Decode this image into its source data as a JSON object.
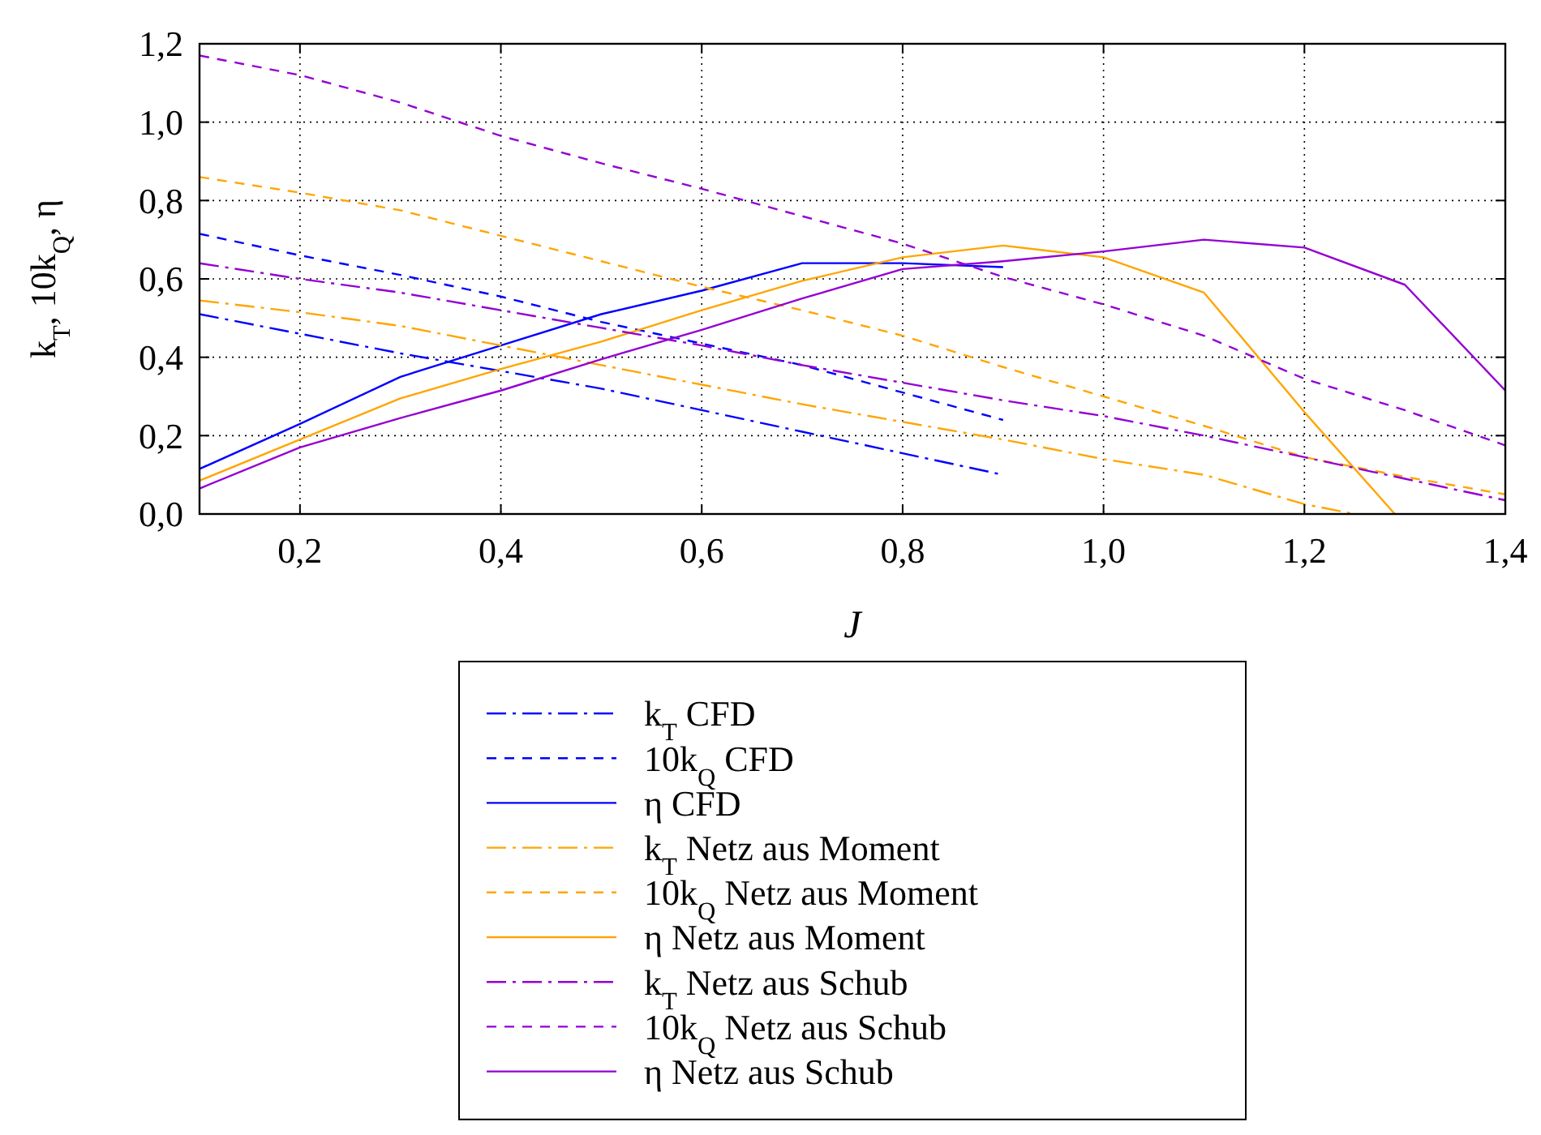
{
  "chart_data": {
    "type": "line",
    "xlabel": "J",
    "ylabel": "k$_{T}$, 10k$_{Q}$, η",
    "xlim": [
      0.1,
      1.4
    ],
    "ylim": [
      0,
      1.2
    ],
    "xticks": [
      {
        "value": 0.2,
        "label": "0,2"
      },
      {
        "value": 0.4,
        "label": "0,4"
      },
      {
        "value": 0.6,
        "label": "0,6"
      },
      {
        "value": 0.8,
        "label": "0,8"
      },
      {
        "value": 1.0,
        "label": "1,0"
      },
      {
        "value": 1.2,
        "label": "1,2"
      },
      {
        "value": 1.4,
        "label": "1,4"
      }
    ],
    "yticks": [
      {
        "value": 0,
        "label": "0,0"
      },
      {
        "value": 0.2,
        "label": "0,2"
      },
      {
        "value": 0.4,
        "label": "0,4"
      },
      {
        "value": 0.6,
        "label": "0,6"
      },
      {
        "value": 0.8,
        "label": "0,8"
      },
      {
        "value": 1.0,
        "label": "1,0"
      },
      {
        "value": 1.2,
        "label": "1,2"
      }
    ],
    "grid": true,
    "legend": "bottom",
    "series": [
      {
        "name": "k$_{T}$ CFD",
        "color": "#0000ff",
        "line_style": "dashdot",
        "x": [
          0.1,
          0.2,
          0.3,
          0.4,
          0.5,
          0.6,
          0.7,
          0.8,
          0.9
        ],
        "values": [
          0.51,
          0.46,
          0.41,
          0.365,
          0.32,
          0.265,
          0.21,
          0.155,
          0.1
        ]
      },
      {
        "name": "10k$_{Q}$ CFD",
        "color": "#0000ff",
        "line_style": "dashed",
        "x": [
          0.1,
          0.2,
          0.3,
          0.4,
          0.5,
          0.6,
          0.7,
          0.8,
          0.9
        ],
        "values": [
          0.715,
          0.66,
          0.61,
          0.555,
          0.49,
          0.435,
          0.38,
          0.31,
          0.24
        ]
      },
      {
        "name": "η CFD",
        "color": "#0000ff",
        "line_style": "solid",
        "x": [
          0.1,
          0.2,
          0.3,
          0.4,
          0.5,
          0.6,
          0.7,
          0.8,
          0.9
        ],
        "values": [
          0.115,
          0.23,
          0.35,
          0.43,
          0.51,
          0.57,
          0.64,
          0.64,
          0.63
        ]
      },
      {
        "name": "k$_{T}$ Netz aus Moment",
        "color": "#ffa500",
        "line_style": "dashdot",
        "x": [
          0.1,
          0.2,
          0.3,
          0.4,
          0.5,
          0.6,
          0.7,
          0.8,
          0.9,
          1.0,
          1.1,
          1.2,
          1.25
        ],
        "values": [
          0.545,
          0.515,
          0.48,
          0.43,
          0.38,
          0.33,
          0.28,
          0.235,
          0.19,
          0.14,
          0.1,
          0.025,
          0.0
        ]
      },
      {
        "name": "10k$_{Q}$ Netz aus Moment",
        "color": "#ffa500",
        "line_style": "dashed",
        "x": [
          0.1,
          0.2,
          0.3,
          0.4,
          0.5,
          0.6,
          0.7,
          0.8,
          0.9,
          1.0,
          1.1,
          1.2,
          1.3,
          1.4
        ],
        "values": [
          0.86,
          0.82,
          0.775,
          0.71,
          0.645,
          0.58,
          0.52,
          0.455,
          0.375,
          0.3,
          0.225,
          0.145,
          0.095,
          0.05
        ]
      },
      {
        "name": "η Netz aus Moment",
        "color": "#ffa500",
        "line_style": "solid",
        "x": [
          0.1,
          0.2,
          0.3,
          0.4,
          0.5,
          0.6,
          0.7,
          0.8,
          0.9,
          1.0,
          1.1,
          1.2,
          1.29
        ],
        "values": [
          0.085,
          0.19,
          0.295,
          0.37,
          0.44,
          0.52,
          0.595,
          0.655,
          0.685,
          0.655,
          0.565,
          0.26,
          0.0
        ]
      },
      {
        "name": "k$_{T}$ Netz aus Schub",
        "color": "#9400d3",
        "line_style": "dashdot",
        "x": [
          0.1,
          0.2,
          0.3,
          0.4,
          0.5,
          0.6,
          0.7,
          0.8,
          0.9,
          1.0,
          1.1,
          1.2,
          1.3,
          1.4
        ],
        "values": [
          0.64,
          0.6,
          0.565,
          0.52,
          0.475,
          0.43,
          0.38,
          0.335,
          0.29,
          0.25,
          0.2,
          0.145,
          0.09,
          0.035
        ]
      },
      {
        "name": "10k$_{Q}$ Netz aus Schub",
        "color": "#9400d3",
        "line_style": "dashed",
        "x": [
          0.1,
          0.2,
          0.3,
          0.4,
          0.5,
          0.6,
          0.7,
          0.8,
          0.9,
          1.0,
          1.1,
          1.2,
          1.3,
          1.4
        ],
        "values": [
          1.17,
          1.12,
          1.05,
          0.965,
          0.895,
          0.83,
          0.76,
          0.69,
          0.605,
          0.535,
          0.455,
          0.345,
          0.265,
          0.175
        ]
      },
      {
        "name": "η Netz aus Schub",
        "color": "#9400d3",
        "line_style": "solid",
        "x": [
          0.1,
          0.2,
          0.3,
          0.4,
          0.5,
          0.6,
          0.7,
          0.8,
          0.9,
          1.0,
          1.1,
          1.2,
          1.3,
          1.4
        ],
        "values": [
          0.065,
          0.17,
          0.245,
          0.315,
          0.395,
          0.47,
          0.55,
          0.625,
          0.645,
          0.67,
          0.7,
          0.68,
          0.585,
          0.315
        ]
      }
    ]
  }
}
